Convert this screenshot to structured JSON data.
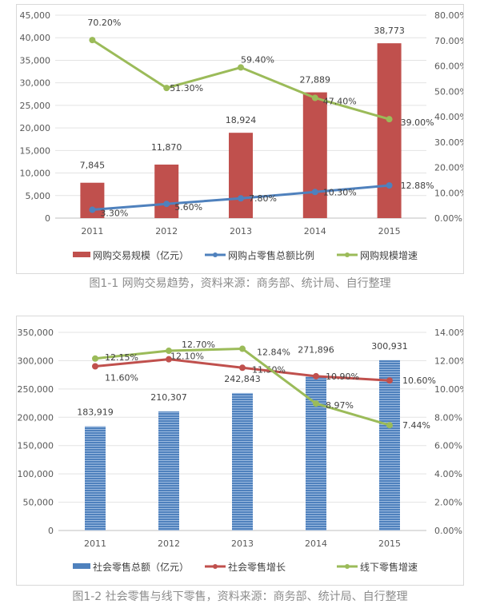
{
  "chart_data": [
    {
      "type": "bar",
      "title": "",
      "caption": "图1-1 网购交易趋势，资料来源：商务部、统计局、自行整理",
      "categories": [
        "2011",
        "2012",
        "2013",
        "2014",
        "2015"
      ],
      "y_left": {
        "range": [
          0,
          45000
        ],
        "ticks": [
          "0",
          "5,000",
          "10,000",
          "15,000",
          "20,000",
          "25,000",
          "30,000",
          "35,000",
          "40,000",
          "45,000"
        ]
      },
      "y_right": {
        "range": [
          0,
          80
        ],
        "ticks": [
          "0.00%",
          "10.00%",
          "20.00%",
          "30.00%",
          "40.00%",
          "50.00%",
          "60.00%",
          "70.00%",
          "80.00%"
        ]
      },
      "grid": true,
      "legend_position": "bottom",
      "series": [
        {
          "name": "网购交易规模（亿元）",
          "type": "bar",
          "axis": "left",
          "color": "#c0504d",
          "values": [
            7845,
            11870,
            18924,
            27889,
            38773
          ],
          "labels": [
            "7,845",
            "11,870",
            "18,924",
            "27,889",
            "38,773"
          ]
        },
        {
          "name": "网购占零售总额比例",
          "type": "line",
          "axis": "right",
          "color": "#4f81bd",
          "values": [
            3.3,
            5.6,
            7.8,
            10.3,
            12.88
          ],
          "labels": [
            "3.30%",
            "5.60%",
            "7.80%",
            "10.30%",
            "12.88%"
          ]
        },
        {
          "name": "网购规模增速",
          "type": "line",
          "axis": "right",
          "color": "#9bbb59",
          "values": [
            70.2,
            51.3,
            59.4,
            47.4,
            39.0
          ],
          "labels": [
            "70.20%",
            "51.30%",
            "59.40%",
            "47.40%",
            "39.00%"
          ]
        }
      ]
    },
    {
      "type": "bar",
      "title": "",
      "caption": "图1-2 社会零售与线下零售，资料来源：商务部、统计局、自行整理",
      "categories": [
        "2011",
        "2012",
        "2013",
        "2014",
        "2015"
      ],
      "y_left": {
        "range": [
          0,
          350000
        ],
        "ticks": [
          "0",
          "50,000",
          "100,000",
          "150,000",
          "200,000",
          "250,000",
          "300,000",
          "350,000"
        ]
      },
      "y_right": {
        "range": [
          0,
          14
        ],
        "ticks": [
          "0.00%",
          "2.00%",
          "4.00%",
          "6.00%",
          "8.00%",
          "10.00%",
          "12.00%",
          "14.00%"
        ]
      },
      "grid": true,
      "legend_position": "bottom",
      "series": [
        {
          "name": "社会零售总额（亿元）",
          "type": "bar",
          "axis": "left",
          "color": "#4f81bd",
          "values": [
            183919,
            210307,
            242843,
            271896,
            300931
          ],
          "labels": [
            "183,919",
            "210,307",
            "242,843",
            "271,896",
            "300,931"
          ]
        },
        {
          "name": "社会零售增长",
          "type": "line",
          "axis": "right",
          "color": "#c0504d",
          "values": [
            11.6,
            12.1,
            11.5,
            10.9,
            10.6
          ],
          "labels": [
            "11.60%",
            "12.10%",
            "11.50%",
            "10.90%",
            "10.60%"
          ]
        },
        {
          "name": "线下零售增速",
          "type": "line",
          "axis": "right",
          "color": "#9bbb59",
          "values": [
            12.15,
            12.7,
            12.84,
            8.97,
            7.44
          ],
          "labels": [
            "12.15%",
            "12.70%",
            "12.84%",
            "8.97%",
            "7.44%"
          ]
        }
      ]
    }
  ]
}
